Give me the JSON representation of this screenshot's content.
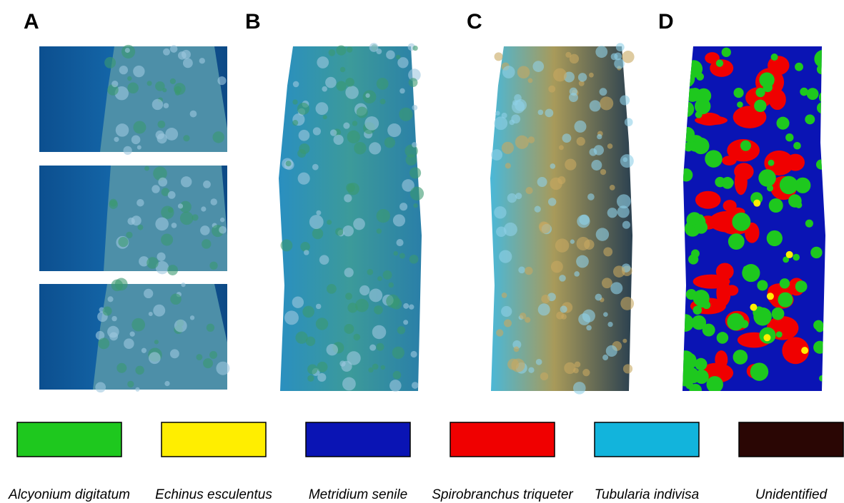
{
  "panels": [
    {
      "label": "A"
    },
    {
      "label": "B"
    },
    {
      "label": "C"
    },
    {
      "label": "D"
    }
  ],
  "legend": [
    {
      "name": "Alcyonium digitatum",
      "color": "#1ec81e"
    },
    {
      "name": "Echinus esculentus",
      "color": "#ffee00"
    },
    {
      "name": "Metridium senile",
      "color": "#0a14b4"
    },
    {
      "name": "Spirobranchus triqueter",
      "color": "#f00000"
    },
    {
      "name": "Tubularia indivisa",
      "color": "#12b4dc"
    },
    {
      "name": "Unidentified",
      "color": "#2a0604"
    }
  ]
}
